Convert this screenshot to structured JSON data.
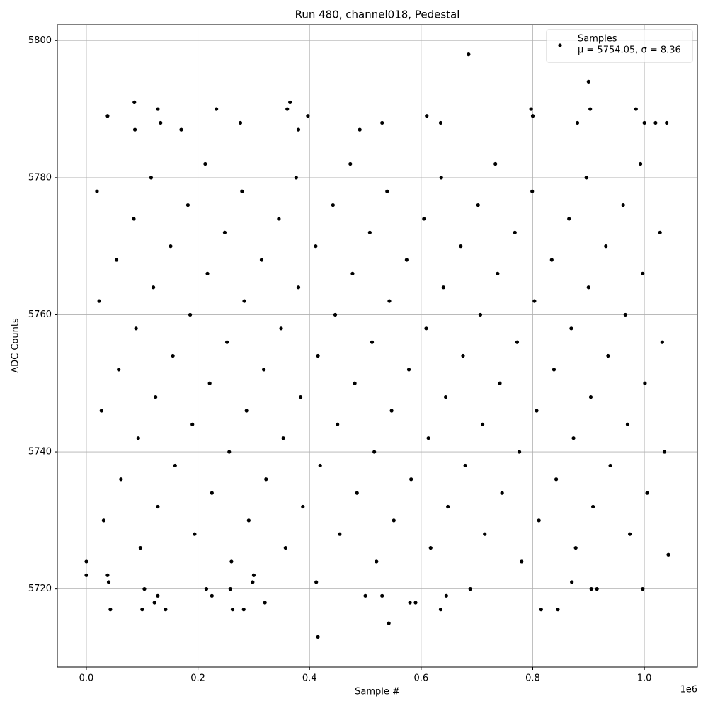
{
  "chart_data": {
    "type": "scatter",
    "title": "Run 480, channel018, Pedestal",
    "xlabel": "Sample #",
    "ylabel": "ADC Counts",
    "x_offset_label": "1e6",
    "xlim": [
      -52000,
      1095000
    ],
    "ylim": [
      5708.6,
      5802.3
    ],
    "xticks": [
      {
        "value": 0,
        "label": "0.0"
      },
      {
        "value": 200000,
        "label": "0.2"
      },
      {
        "value": 400000,
        "label": "0.4"
      },
      {
        "value": 600000,
        "label": "0.6"
      },
      {
        "value": 800000,
        "label": "0.8"
      },
      {
        "value": 1000000,
        "label": "1.0"
      }
    ],
    "yticks": [
      5720,
      5740,
      5760,
      5780,
      5800
    ],
    "grid": true,
    "legend": "upper right",
    "annotations": [
      "μ = 5754.05, σ = 8.36"
    ],
    "series": [
      {
        "name": "Samples",
        "color": "#000000",
        "x": [
          0,
          38000,
          40000,
          38000,
          43000,
          86000,
          87000,
          100000,
          104000,
          122000,
          128000,
          128000,
          142000,
          133000,
          170000,
          215000,
          225000,
          233000,
          258000,
          262000,
          276000,
          282000,
          320000,
          360000,
          365000,
          380000,
          397000,
          415000,
          412000,
          490000,
          500000,
          530000,
          530000,
          542000,
          580000,
          590000,
          610000,
          635000,
          635000,
          685000,
          688000,
          645000,
          797000,
          800000,
          815000,
          845000,
          880000,
          900000,
          903000,
          905000,
          915000,
          985000,
          997000,
          1000000,
          1040000,
          1020000,
          1043000,
          870000,
          298000,
          300000,
          0,
          260000,
          520000,
          780000,
          97000,
          357000,
          617000,
          877000,
          194000,
          454000,
          714000,
          974000,
          291000,
          551000,
          811000,
          31000,
          388000,
          648000,
          908000,
          128000,
          485000,
          745000,
          1005000,
          225000,
          582000,
          842000,
          62000,
          322000,
          679000,
          939000,
          159000,
          419000,
          776000,
          1036000,
          256000,
          516000,
          873000,
          93000,
          353000,
          613000,
          970000,
          190000,
          450000,
          710000,
          27000,
          287000,
          547000,
          807000,
          124000,
          384000,
          644000,
          904000,
          221000,
          481000,
          741000,
          1001000,
          318000,
          578000,
          838000,
          58000,
          415000,
          675000,
          935000,
          155000,
          512000,
          772000,
          1032000,
          252000,
          609000,
          869000,
          89000,
          349000,
          706000,
          966000,
          186000,
          446000,
          803000,
          23000,
          283000,
          543000,
          900000,
          120000,
          380000,
          640000,
          997000,
          217000,
          477000,
          737000,
          54000,
          314000,
          574000,
          834000,
          151000,
          411000,
          671000,
          931000,
          248000,
          508000,
          768000,
          1028000,
          345000,
          605000,
          865000,
          85000,
          442000,
          702000,
          962000,
          182000,
          539000,
          799000,
          19000,
          279000,
          636000,
          896000,
          116000,
          376000,
          733000,
          993000,
          213000,
          473000
        ],
        "values": [
          5722,
          5722,
          5721,
          5789,
          5717,
          5791,
          5787,
          5717,
          5720,
          5718,
          5719,
          5790,
          5717,
          5788,
          5787,
          5720,
          5719,
          5790,
          5720,
          5717,
          5788,
          5717,
          5718,
          5790,
          5791,
          5787,
          5789,
          5713,
          5721,
          5787,
          5719,
          5788,
          5719,
          5715,
          5718,
          5718,
          5789,
          5717,
          5788,
          5798,
          5720,
          5719,
          5790,
          5789,
          5717,
          5717,
          5788,
          5794,
          5790,
          5720,
          5720,
          5790,
          5720,
          5788,
          5788,
          5788,
          5725,
          5721,
          5721,
          5722,
          5724,
          5724,
          5724,
          5724,
          5726,
          5726,
          5726,
          5726,
          5728,
          5728,
          5728,
          5728,
          5730,
          5730,
          5730,
          5730,
          5732,
          5732,
          5732,
          5732,
          5734,
          5734,
          5734,
          5734,
          5736,
          5736,
          5736,
          5736,
          5738,
          5738,
          5738,
          5738,
          5740,
          5740,
          5740,
          5740,
          5742,
          5742,
          5742,
          5742,
          5744,
          5744,
          5744,
          5744,
          5746,
          5746,
          5746,
          5746,
          5748,
          5748,
          5748,
          5748,
          5750,
          5750,
          5750,
          5750,
          5752,
          5752,
          5752,
          5752,
          5754,
          5754,
          5754,
          5754,
          5756,
          5756,
          5756,
          5756,
          5758,
          5758,
          5758,
          5758,
          5760,
          5760,
          5760,
          5760,
          5762,
          5762,
          5762,
          5762,
          5764,
          5764,
          5764,
          5764,
          5766,
          5766,
          5766,
          5766,
          5768,
          5768,
          5768,
          5768,
          5770,
          5770,
          5770,
          5770,
          5772,
          5772,
          5772,
          5772,
          5774,
          5774,
          5774,
          5774,
          5776,
          5776,
          5776,
          5776,
          5778,
          5778,
          5778,
          5778,
          5780,
          5780,
          5780,
          5780,
          5782,
          5782,
          5782,
          5782
        ]
      }
    ]
  }
}
